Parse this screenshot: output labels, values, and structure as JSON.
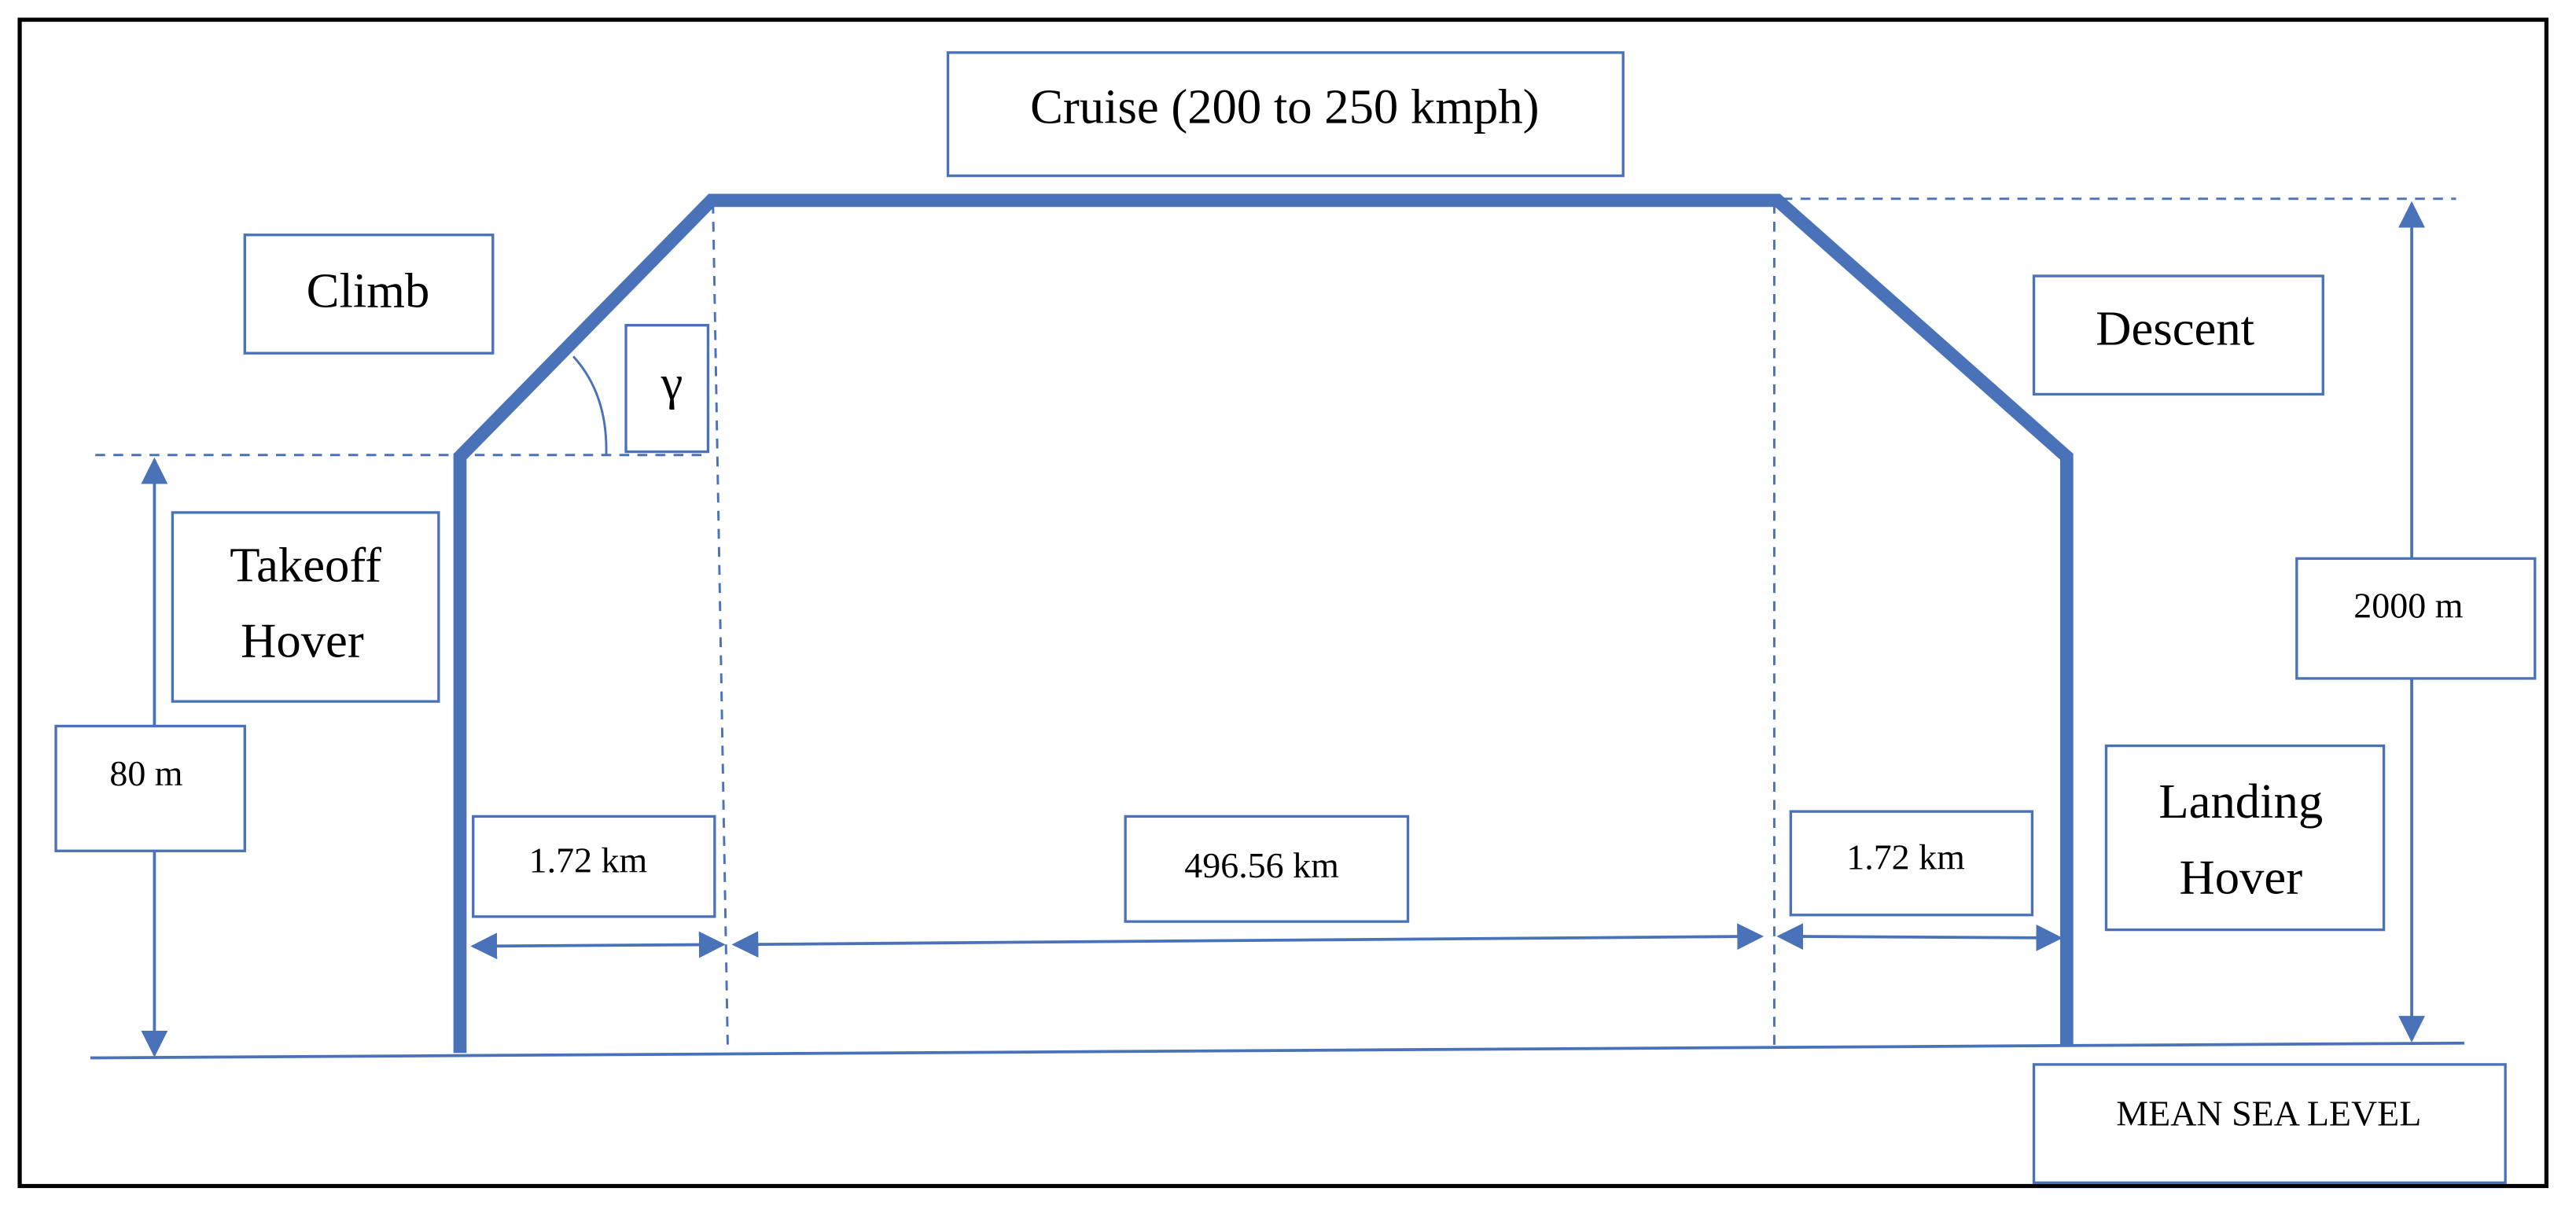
{
  "cruise": "Cruise (200 to 250 kmph)",
  "climb": "Climb",
  "angle": "γ",
  "descent": "Descent",
  "takeoff_hover": [
    "Takeoff",
    "Hover"
  ],
  "landing_hover": [
    "Landing",
    "Hover"
  ],
  "hover_altitude": "80 m",
  "cruise_altitude": "2000 m",
  "climb_distance": "1.72 km",
  "cruise_distance": "496.56 km",
  "descent_distance": "1.72 km",
  "reference": "MEAN SEA LEVEL"
}
